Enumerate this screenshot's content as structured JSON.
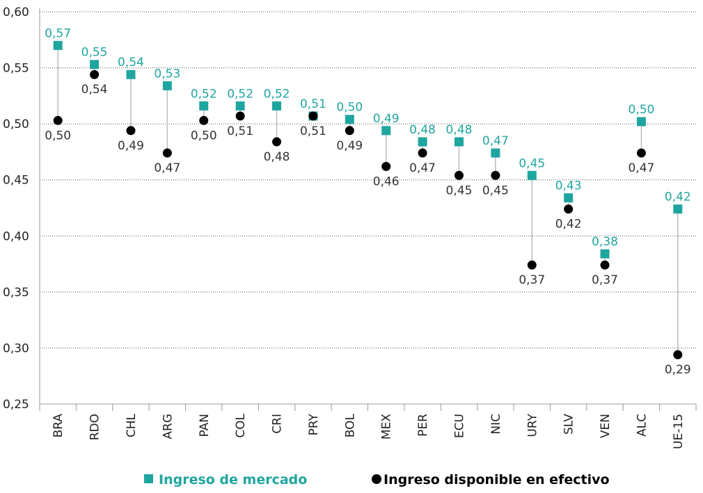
{
  "chart_data": {
    "type": "dotplot",
    "categories": [
      "BRA",
      "RDO",
      "CHL",
      "ARG",
      "PAN",
      "COL",
      "CRI",
      "PRY",
      "BOL",
      "MEX",
      "PER",
      "ECU",
      "NIC",
      "URY",
      "SLV",
      "VEN",
      "ALC",
      "UE-15"
    ],
    "series": [
      {
        "name": "Ingreso de mercado",
        "color": "#1fa5a0",
        "marker": "square",
        "values": [
          0.57,
          0.553,
          0.544,
          0.534,
          0.516,
          0.516,
          0.516,
          0.507,
          0.504,
          0.494,
          0.484,
          0.484,
          0.474,
          0.454,
          0.434,
          0.384,
          0.502,
          0.424
        ],
        "value_labels": [
          "0,57",
          "0,55",
          "0,54",
          "0,53",
          "0,52",
          "0,52",
          "0,52",
          "0,51",
          "0,50",
          "0,49",
          "0,48",
          "0,48",
          "0,47",
          "0,45",
          "0,43",
          "0,38",
          "0,50",
          "0,42"
        ]
      },
      {
        "name": "Ingreso disponible en efectivo",
        "color": "#000000",
        "marker": "circle",
        "values": [
          0.503,
          0.544,
          0.494,
          0.474,
          0.503,
          0.507,
          0.484,
          0.507,
          0.494,
          0.462,
          0.474,
          0.454,
          0.454,
          0.374,
          0.424,
          0.374,
          0.474,
          0.294
        ],
        "value_labels": [
          "0,50",
          "0,54",
          "0,49",
          "0,47",
          "0,50",
          "0,51",
          "0,48",
          "0,51",
          "0,49",
          "0,46",
          "0,47",
          "0,45",
          "0,45",
          "0,37",
          "0,42",
          "0,37",
          "0,47",
          "0,29"
        ]
      }
    ],
    "ylim": [
      0.25,
      0.6
    ],
    "yticks": [
      {
        "value": 0.25,
        "label": "0,25"
      },
      {
        "value": 0.3,
        "label": "0,30"
      },
      {
        "value": 0.35,
        "label": "0,35"
      },
      {
        "value": 0.4,
        "label": "0,40"
      },
      {
        "value": 0.45,
        "label": "0,45"
      },
      {
        "value": 0.5,
        "label": "0,50"
      },
      {
        "value": 0.55,
        "label": "0,55"
      },
      {
        "value": 0.6,
        "label": "0,60"
      }
    ],
    "grid": true,
    "legend": "bottom"
  }
}
